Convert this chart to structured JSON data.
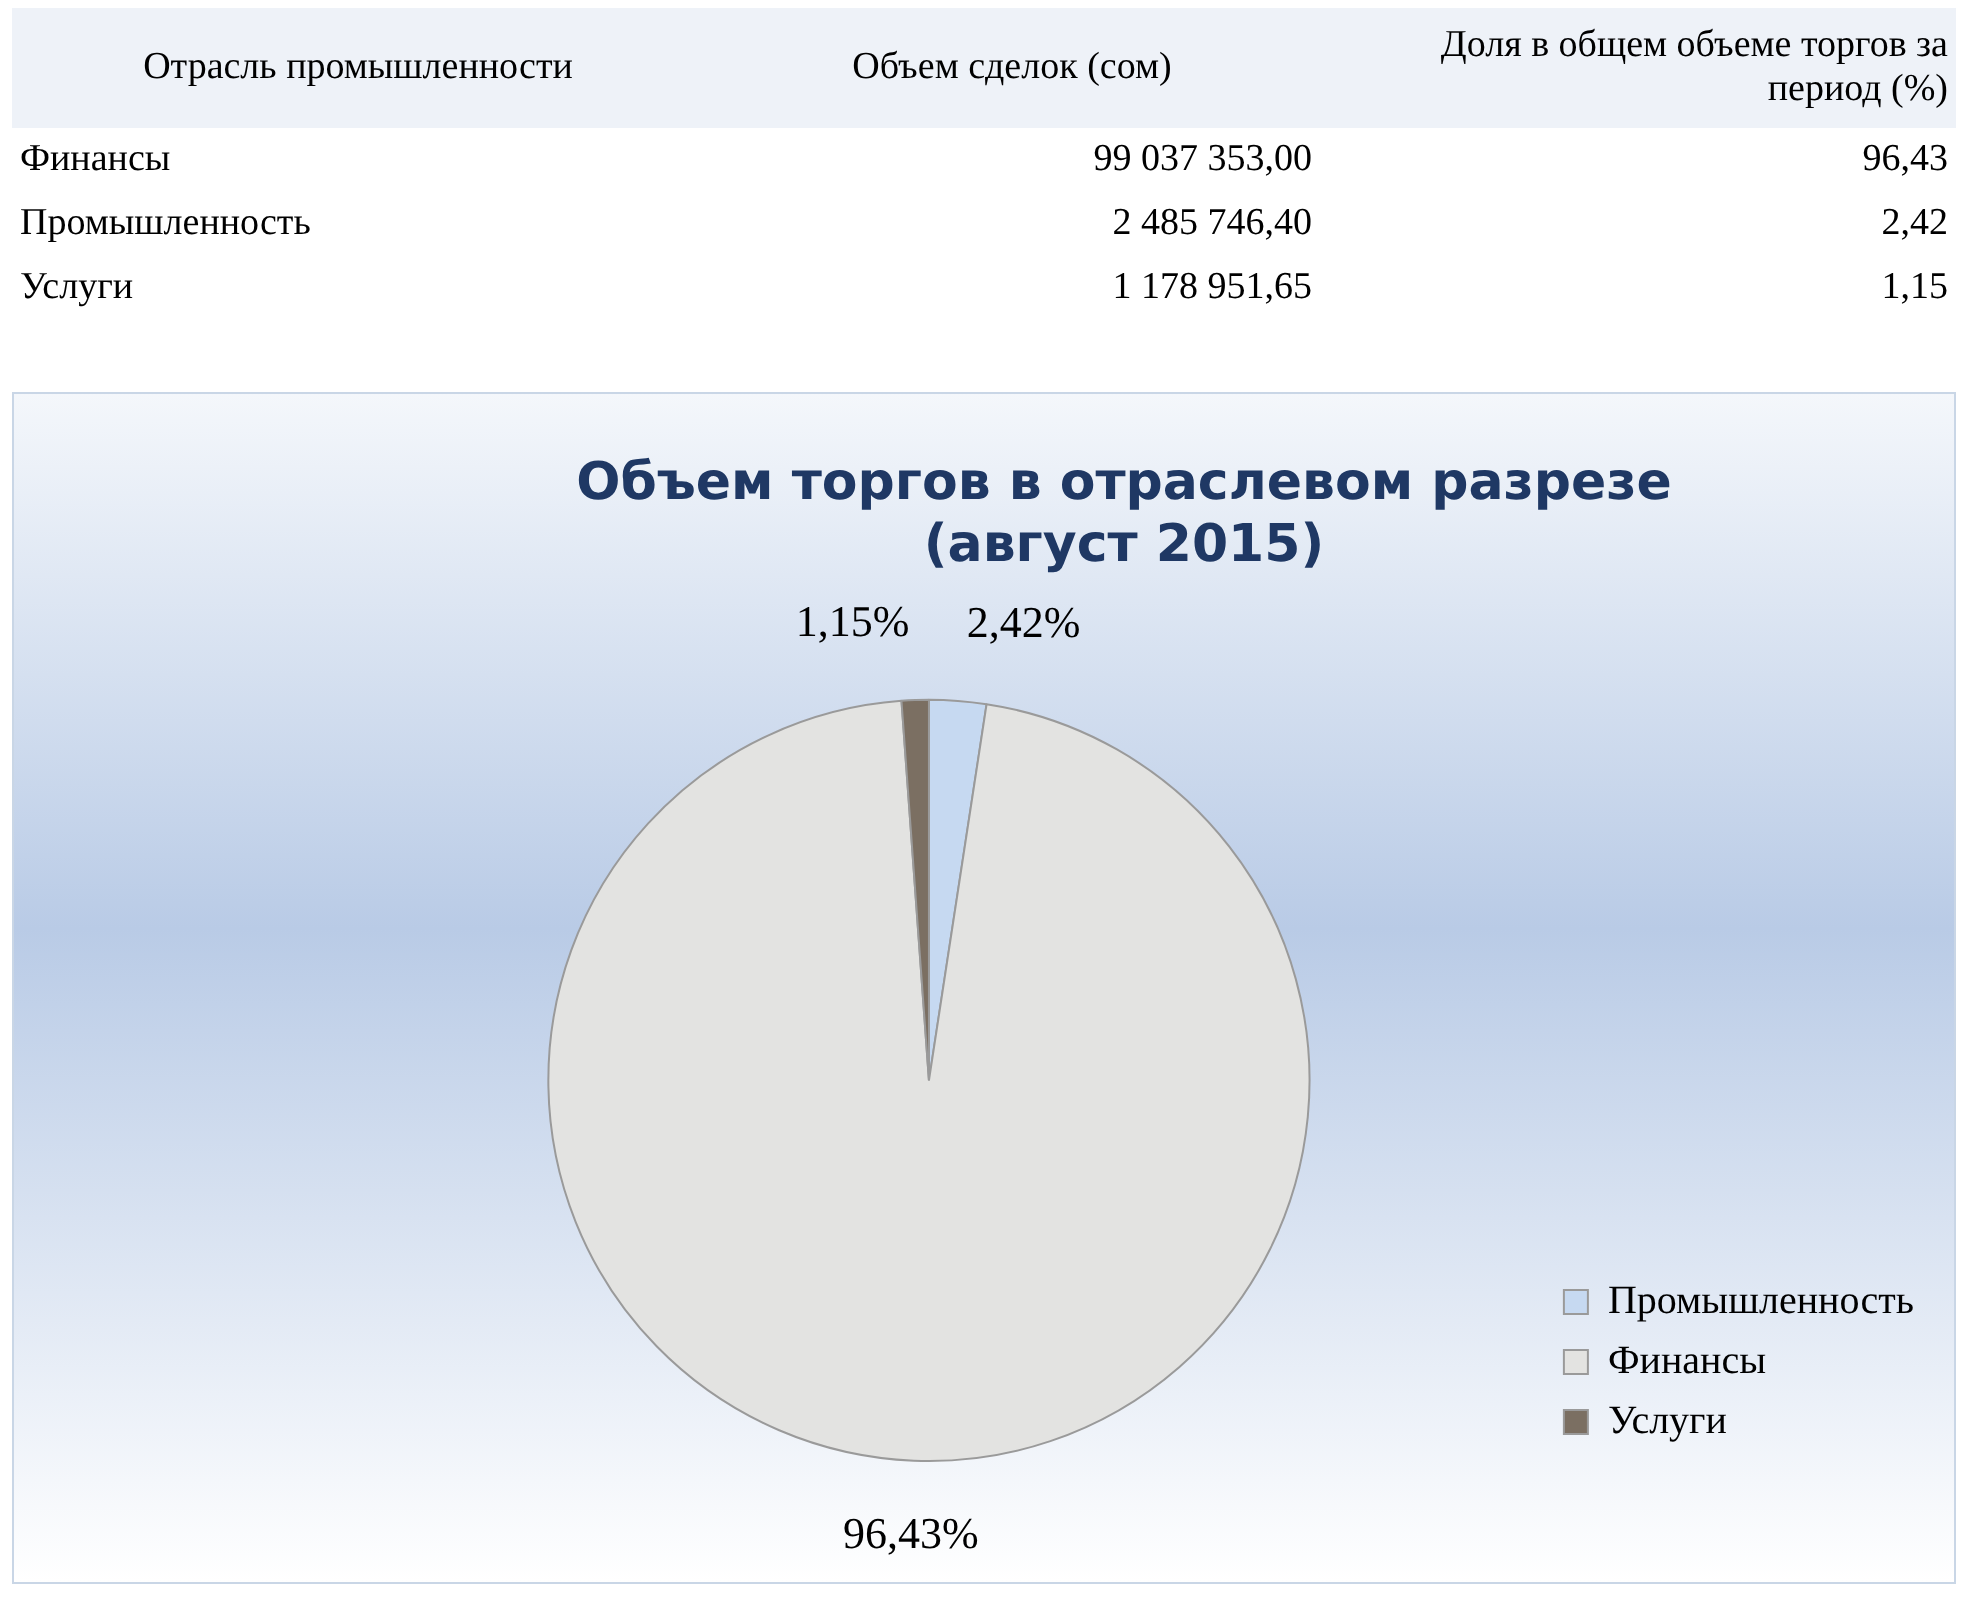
{
  "chart_data": [
    {
      "type": "other",
      "xlabel": "Отрасль промышленности",
      "categories": [
        "Финансы",
        "Промышленность",
        "Услуги"
      ],
      "series": [
        {
          "name": "Объем сделок (сом)",
          "values": [
            99037353.0,
            2485746.4,
            1178951.65
          ],
          "value_labels": [
            "99 037 353,00",
            "2 485 746,40",
            "1 178 951,65"
          ]
        },
        {
          "name": "Доля в общем объеме торгов за период (%)",
          "values": [
            96.43,
            2.42,
            1.15
          ],
          "value_labels": [
            "96,43",
            "2,42",
            "1,15"
          ]
        }
      ]
    },
    {
      "type": "pie",
      "title": "Объем торгов в отраслевом разрезе\n(август 2015)",
      "categories": [
        "Промышленность",
        "Финансы",
        "Услуги"
      ],
      "values": [
        2.42,
        96.43,
        1.15
      ],
      "value_labels": [
        "2,42%",
        "96,43%",
        "1,15%"
      ],
      "colors": [
        "#c6d9f1",
        "#e3e3e1",
        "#7b6f62"
      ],
      "legend": "bottom right"
    }
  ]
}
